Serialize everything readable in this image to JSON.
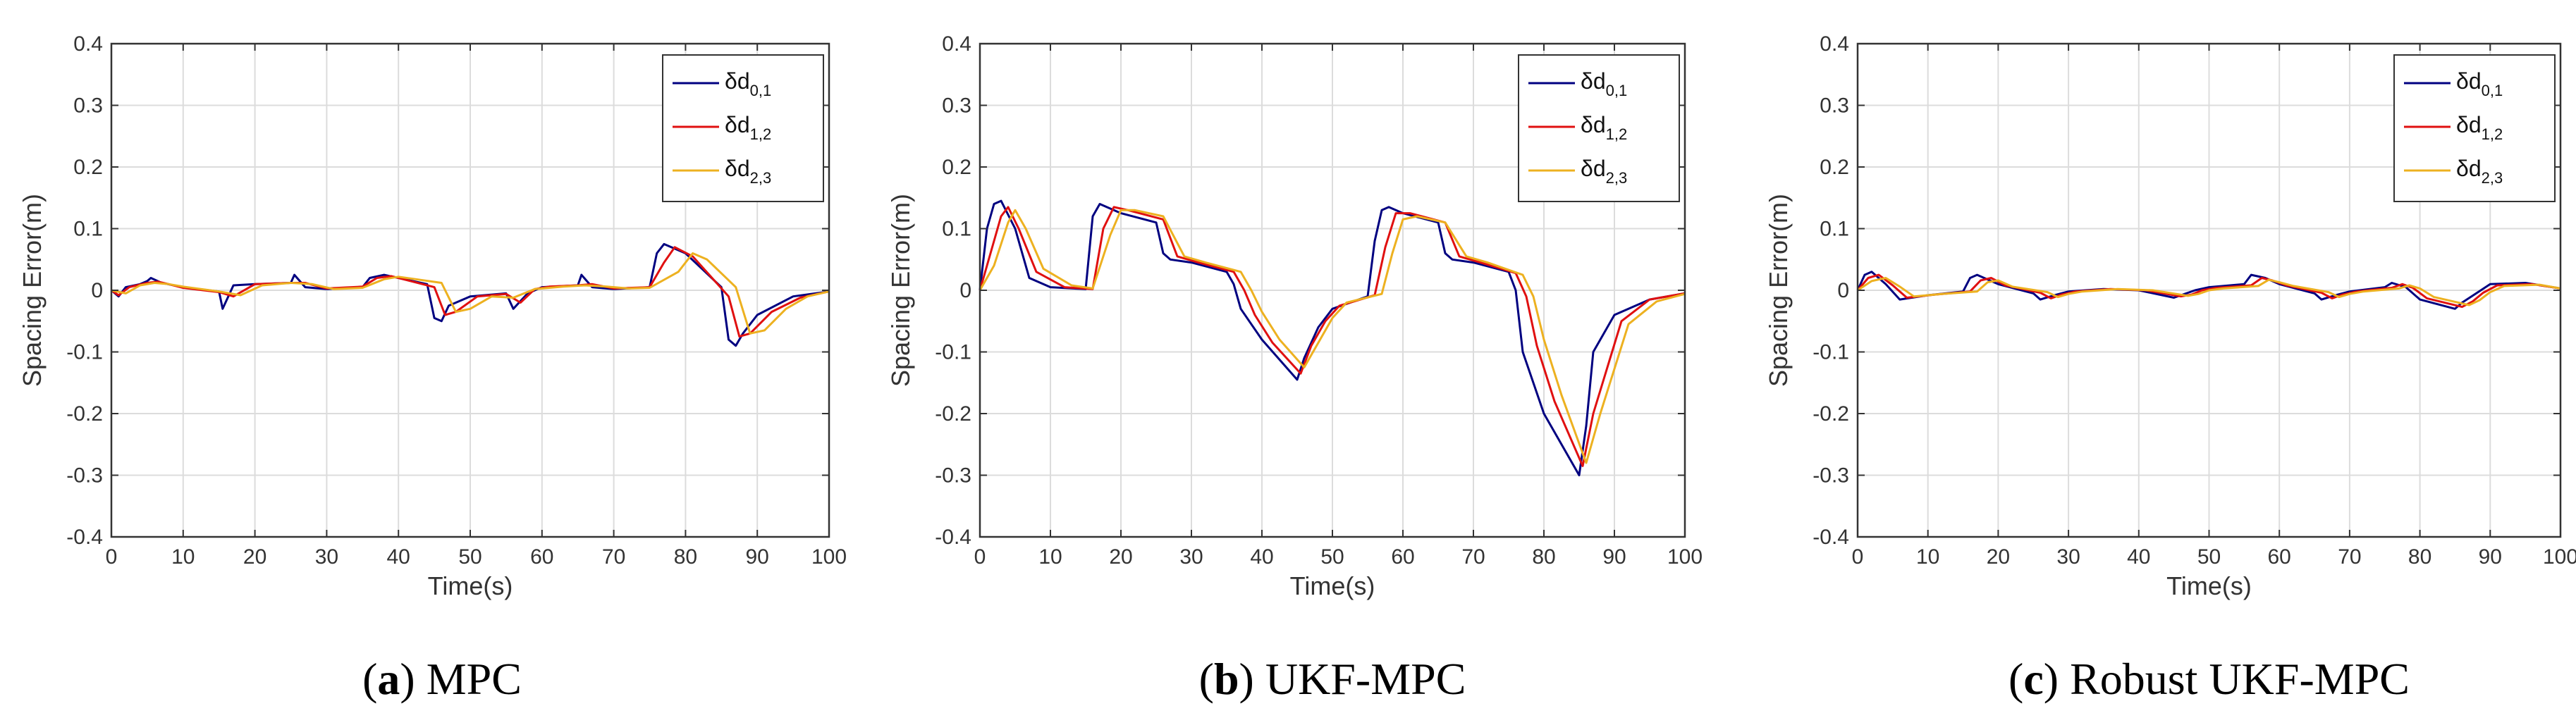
{
  "colors": {
    "s01": "#000080",
    "s12": "#e01010",
    "s23": "#edb120",
    "grid": "#dcdcdc",
    "axis": "#333333"
  },
  "chart_data": [
    {
      "type": "line",
      "caption_letter": "a",
      "caption_text": "MPC",
      "xlabel": "Time(s)",
      "ylabel": "Spacing Error(m)",
      "xlim": [
        0,
        100
      ],
      "ylim": [
        -0.4,
        0.4
      ],
      "xticks": [
        0,
        10,
        20,
        30,
        40,
        50,
        60,
        70,
        80,
        90,
        100
      ],
      "yticks": [
        -0.4,
        -0.3,
        -0.2,
        -0.1,
        0,
        0.1,
        0.2,
        0.3,
        0.4
      ],
      "grid": true,
      "legend_position": "top-right",
      "series": [
        {
          "name_main": "δd",
          "name_sub": "0,1",
          "color": "#000080",
          "x": [
            0,
            1,
            2,
            4,
            5,
            5.5,
            7,
            10,
            15,
            15.5,
            17,
            20,
            25,
            25.5,
            27,
            30,
            35,
            36,
            38,
            44,
            45,
            46,
            47,
            50,
            55,
            56,
            58,
            60,
            65,
            65.5,
            67,
            70,
            75,
            76,
            77,
            80,
            85,
            86,
            87,
            88,
            90,
            95,
            100
          ],
          "y": [
            0,
            -0.01,
            0.005,
            0.01,
            0.015,
            0.02,
            0.012,
            0.005,
            -0.002,
            -0.03,
            0.008,
            0.01,
            0.012,
            0.025,
            0.005,
            0.002,
            0.005,
            0.02,
            0.025,
            0.01,
            -0.045,
            -0.05,
            -0.025,
            -0.01,
            -0.005,
            -0.03,
            -0.005,
            0.005,
            0.008,
            0.025,
            0.005,
            0.002,
            0.005,
            0.06,
            0.075,
            0.06,
            0.005,
            -0.08,
            -0.09,
            -0.07,
            -0.04,
            -0.01,
            -0.002
          ]
        },
        {
          "name_main": "δd",
          "name_sub": "1,2",
          "color": "#e01010",
          "x": [
            0,
            1,
            2.5,
            5,
            6.5,
            8,
            10,
            15,
            17,
            20,
            25,
            27,
            30,
            35,
            37,
            39,
            45,
            46.5,
            48,
            51,
            55,
            57,
            59,
            61,
            65,
            67,
            70,
            75,
            77,
            78.5,
            81,
            86,
            87.5,
            89,
            92,
            96,
            100
          ],
          "y": [
            0,
            -0.008,
            0.005,
            0.012,
            0.014,
            0.01,
            0.004,
            -0.003,
            -0.01,
            0.01,
            0.012,
            0.012,
            0.003,
            0.006,
            0.02,
            0.023,
            0.005,
            -0.04,
            -0.035,
            -0.01,
            -0.006,
            -0.02,
            0.002,
            0.006,
            0.008,
            0.01,
            0.003,
            0.005,
            0.045,
            0.07,
            0.055,
            -0.01,
            -0.075,
            -0.07,
            -0.035,
            -0.012,
            -0.002
          ]
        },
        {
          "name_main": "δd",
          "name_sub": "2,3",
          "color": "#edb120",
          "x": [
            0,
            2,
            4,
            6,
            8,
            10,
            15,
            18,
            21,
            25,
            28,
            31,
            35,
            38,
            40,
            46,
            48,
            50,
            53,
            56,
            59,
            63,
            66,
            69,
            72,
            75,
            79,
            81,
            83,
            87,
            89,
            91,
            94,
            97,
            100
          ],
          "y": [
            0,
            -0.005,
            0.008,
            0.012,
            0.01,
            0.006,
            -0.002,
            -0.008,
            0.008,
            0.012,
            0.01,
            0.002,
            0.004,
            0.018,
            0.022,
            0.012,
            -0.035,
            -0.03,
            -0.01,
            -0.012,
            0.002,
            0.006,
            0.008,
            0.006,
            0.003,
            0.004,
            0.03,
            0.06,
            0.05,
            0.005,
            -0.07,
            -0.065,
            -0.03,
            -0.01,
            -0.002
          ]
        }
      ]
    },
    {
      "type": "line",
      "caption_letter": "b",
      "caption_text": "UKF-MPC",
      "xlabel": "Time(s)",
      "ylabel": "Spacing Error(m)",
      "xlim": [
        0,
        100
      ],
      "ylim": [
        -0.4,
        0.4
      ],
      "xticks": [
        0,
        10,
        20,
        30,
        40,
        50,
        60,
        70,
        80,
        90,
        100
      ],
      "yticks": [
        -0.4,
        -0.3,
        -0.2,
        -0.1,
        0,
        0.1,
        0.2,
        0.3,
        0.4
      ],
      "grid": true,
      "legend_position": "top-right",
      "series": [
        {
          "name_main": "δd",
          "name_sub": "0,1",
          "color": "#000080",
          "x": [
            0,
            1,
            2,
            3,
            5,
            7,
            10,
            15,
            16,
            17,
            18,
            20,
            25,
            26,
            27,
            30,
            35,
            36,
            37,
            40,
            45,
            46,
            48,
            50,
            55,
            56,
            57,
            58,
            60,
            65,
            66,
            67,
            70,
            75,
            76,
            77,
            80,
            85,
            86,
            87,
            90,
            95,
            100
          ],
          "y": [
            0,
            0.1,
            0.14,
            0.145,
            0.1,
            0.02,
            0.005,
            0.002,
            0.12,
            0.14,
            0.135,
            0.125,
            0.11,
            0.06,
            0.05,
            0.045,
            0.03,
            0.01,
            -0.03,
            -0.08,
            -0.145,
            -0.11,
            -0.06,
            -0.03,
            -0.01,
            0.08,
            0.13,
            0.135,
            0.125,
            0.11,
            0.06,
            0.05,
            0.045,
            0.03,
            0.0,
            -0.1,
            -0.2,
            -0.3,
            -0.22,
            -0.1,
            -0.04,
            -0.015,
            -0.005
          ]
        },
        {
          "name_main": "δd",
          "name_sub": "1,2",
          "color": "#e01010",
          "x": [
            0,
            1.5,
            3,
            4,
            5.5,
            8,
            12,
            16,
            17.5,
            19,
            21,
            26,
            28,
            31,
            36,
            37.5,
            39,
            41.5,
            45.5,
            47,
            49,
            51,
            56,
            57.5,
            59,
            61,
            66,
            68,
            71,
            76,
            77.5,
            79,
            81.5,
            85.5,
            87,
            91,
            95,
            100
          ],
          "y": [
            0,
            0.06,
            0.12,
            0.135,
            0.1,
            0.03,
            0.005,
            0.002,
            0.1,
            0.135,
            0.13,
            0.115,
            0.055,
            0.045,
            0.03,
            0.0,
            -0.04,
            -0.085,
            -0.135,
            -0.09,
            -0.05,
            -0.025,
            -0.008,
            0.07,
            0.125,
            0.125,
            0.11,
            0.055,
            0.045,
            0.028,
            -0.01,
            -0.09,
            -0.18,
            -0.285,
            -0.2,
            -0.05,
            -0.015,
            -0.005
          ]
        },
        {
          "name_main": "δd",
          "name_sub": "2,3",
          "color": "#edb120",
          "x": [
            0,
            2,
            4,
            5,
            6.5,
            9,
            13,
            16,
            18.5,
            20,
            22,
            26,
            29,
            32,
            37,
            38.5,
            40,
            42.5,
            46,
            48,
            50,
            52,
            57,
            58.5,
            60,
            62,
            66,
            69,
            72,
            77,
            78.5,
            80,
            82.5,
            86,
            88,
            92,
            96,
            100
          ],
          "y": [
            0,
            0.04,
            0.11,
            0.13,
            0.1,
            0.035,
            0.008,
            0.003,
            0.09,
            0.13,
            0.13,
            0.12,
            0.055,
            0.045,
            0.03,
            0.0,
            -0.035,
            -0.08,
            -0.125,
            -0.085,
            -0.045,
            -0.02,
            -0.006,
            0.06,
            0.115,
            0.12,
            0.11,
            0.055,
            0.045,
            0.025,
            -0.01,
            -0.08,
            -0.17,
            -0.28,
            -0.2,
            -0.055,
            -0.018,
            -0.006
          ]
        }
      ]
    },
    {
      "type": "line",
      "caption_letter": "c",
      "caption_text": "Robust UKF-MPC",
      "xlabel": "Time(s)",
      "ylabel": "Spacing Error(m)",
      "xlim": [
        0,
        100
      ],
      "ylim": [
        -0.4,
        0.4
      ],
      "xticks": [
        0,
        10,
        20,
        30,
        40,
        50,
        60,
        70,
        80,
        90,
        100
      ],
      "yticks": [
        -0.4,
        -0.3,
        -0.2,
        -0.1,
        0,
        0.1,
        0.2,
        0.3,
        0.4
      ],
      "grid": true,
      "legend_position": "top-right",
      "series": [
        {
          "name_main": "δd",
          "name_sub": "0,1",
          "color": "#000080",
          "x": [
            0,
            1,
            2,
            4,
            6,
            10,
            15,
            16,
            17,
            20,
            25,
            26,
            28,
            30,
            35,
            40,
            45,
            46,
            48,
            50,
            55,
            56,
            58,
            60,
            65,
            66,
            68,
            70,
            75,
            76,
            78,
            80,
            85,
            86,
            88,
            90,
            95,
            100
          ],
          "y": [
            0,
            0.025,
            0.03,
            0.01,
            -0.015,
            -0.008,
            -0.002,
            0.02,
            0.025,
            0.01,
            -0.005,
            -0.015,
            -0.008,
            -0.002,
            0.002,
            0.0,
            -0.012,
            -0.008,
            0.0,
            0.005,
            0.01,
            0.025,
            0.02,
            0.01,
            -0.005,
            -0.015,
            -0.008,
            -0.002,
            0.005,
            0.012,
            0.005,
            -0.015,
            -0.03,
            -0.02,
            -0.005,
            0.01,
            0.012,
            0.003
          ]
        },
        {
          "name_main": "δd",
          "name_sub": "1,2",
          "color": "#e01010",
          "x": [
            0,
            1.5,
            3,
            5,
            7,
            11,
            16,
            17.5,
            19,
            21,
            26,
            27.5,
            29,
            31,
            36,
            41,
            46,
            47.5,
            49,
            51,
            56,
            57.5,
            59,
            61,
            66,
            67.5,
            69,
            71,
            76,
            77.5,
            79,
            81,
            86,
            87.5,
            89,
            91,
            96,
            100
          ],
          "y": [
            0,
            0.02,
            0.025,
            0.008,
            -0.012,
            -0.007,
            -0.002,
            0.016,
            0.02,
            0.008,
            -0.004,
            -0.013,
            -0.007,
            -0.002,
            0.002,
            0.0,
            -0.01,
            -0.007,
            0.0,
            0.004,
            0.008,
            0.02,
            0.016,
            0.008,
            -0.004,
            -0.013,
            -0.007,
            -0.002,
            0.004,
            0.01,
            0.004,
            -0.013,
            -0.027,
            -0.018,
            -0.004,
            0.008,
            0.01,
            0.003
          ]
        },
        {
          "name_main": "δd",
          "name_sub": "2,3",
          "color": "#edb120",
          "x": [
            0,
            2,
            4,
            6,
            8,
            12,
            17,
            18.5,
            20,
            22,
            27,
            28.5,
            30,
            32,
            37,
            42,
            47,
            48.5,
            50,
            52,
            57,
            58.5,
            60,
            62,
            67,
            68.5,
            70,
            72,
            77,
            78.5,
            80,
            82,
            87,
            88.5,
            90,
            92,
            97,
            100
          ],
          "y": [
            0,
            0.015,
            0.02,
            0.006,
            -0.01,
            -0.006,
            -0.002,
            0.013,
            0.016,
            0.006,
            -0.003,
            -0.011,
            -0.006,
            -0.002,
            0.002,
            0.0,
            -0.009,
            -0.006,
            0.0,
            0.003,
            0.007,
            0.017,
            0.013,
            0.007,
            -0.003,
            -0.011,
            -0.006,
            -0.002,
            0.003,
            0.008,
            0.003,
            -0.011,
            -0.024,
            -0.016,
            -0.003,
            0.007,
            0.009,
            0.003
          ]
        }
      ]
    }
  ]
}
